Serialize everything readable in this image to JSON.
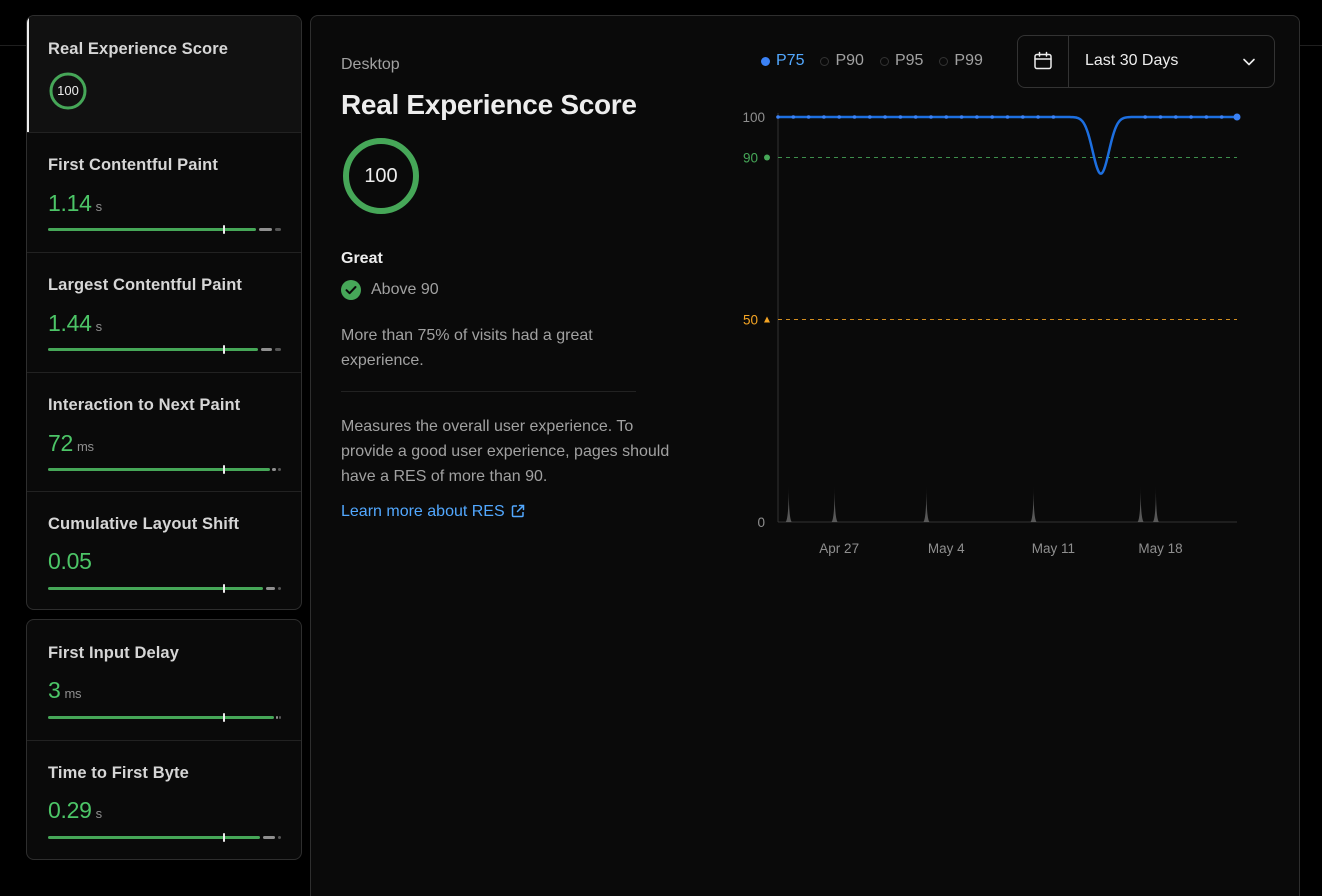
{
  "sidebar": {
    "metrics": [
      {
        "title": "Real Experience Score",
        "score": "100"
      },
      {
        "title": "First Contentful Paint",
        "value": "1.14",
        "unit": "s"
      },
      {
        "title": "Largest Contentful Paint",
        "value": "1.44",
        "unit": "s"
      },
      {
        "title": "Interaction to Next Paint",
        "value": "72",
        "unit": "ms"
      },
      {
        "title": "Cumulative Layout Shift",
        "value": "0.05",
        "unit": ""
      },
      {
        "title": "First Input Delay",
        "value": "3",
        "unit": "ms"
      },
      {
        "title": "Time to First Byte",
        "value": "0.29",
        "unit": "s"
      }
    ]
  },
  "main": {
    "device": "Desktop",
    "title": "Real Experience Score",
    "score": "100",
    "rating": "Great",
    "threshold": "Above 90",
    "summary": "More than 75% of visits had a great experience.",
    "description": "Measures the overall user experience. To provide a good user experience, pages should have a RES of more than 90.",
    "learn_more": "Learn more about RES"
  },
  "legend": {
    "items": [
      {
        "label": "P75",
        "active": true
      },
      {
        "label": "P90",
        "active": false
      },
      {
        "label": "P95",
        "active": false
      },
      {
        "label": "P99",
        "active": false
      }
    ]
  },
  "date_picker": {
    "label": "Last 30 Days"
  },
  "colors": {
    "good": "#46a758",
    "warn": "#f5a524",
    "series": "#1d6fe0",
    "link": "#52a8ff"
  },
  "icons": [
    "calendar-icon",
    "chevron-down-icon",
    "check-circle-icon",
    "external-link-icon"
  ],
  "chart_data": {
    "type": "line",
    "y_ticks": [
      {
        "value": 0,
        "label": "0"
      },
      {
        "value": 100,
        "label": "100"
      }
    ],
    "ylim": [
      0,
      100
    ],
    "thresholds": [
      {
        "value": 90,
        "label": "90",
        "color": "#46a758"
      },
      {
        "value": 50,
        "label": "50",
        "color": "#f5a524"
      }
    ],
    "x_ticks": [
      {
        "index": 4,
        "label": "Apr 27"
      },
      {
        "index": 11,
        "label": "May 4"
      },
      {
        "index": 18,
        "label": "May 11"
      },
      {
        "index": 25,
        "label": "May 18"
      }
    ],
    "series": [
      {
        "name": "P75",
        "values": [
          100,
          100,
          100,
          100,
          100,
          100,
          100,
          100,
          100,
          100,
          100,
          100,
          100,
          100,
          100,
          100,
          100,
          100,
          100,
          100,
          100,
          100,
          100,
          100,
          100,
          100,
          100,
          100,
          100,
          100,
          100
        ]
      }
    ],
    "dip": {
      "index": 21.1,
      "min": 86
    },
    "volume_spikes": [
      0.7,
      3.7,
      9.7,
      16.7,
      23.7,
      24.7
    ]
  }
}
